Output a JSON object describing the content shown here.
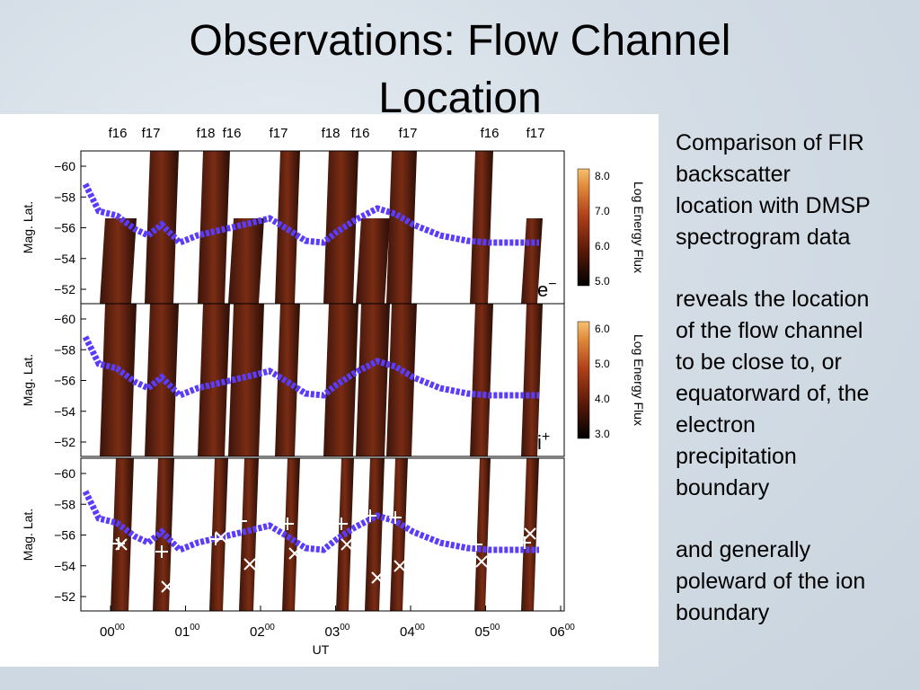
{
  "title": [
    "Observations: Flow Channel",
    "Location"
  ],
  "figure": {
    "satellites": [
      "f16",
      "f17",
      "f18",
      "f16",
      "f17",
      "f18",
      "f16",
      "f17",
      "f16",
      "f17"
    ],
    "y_label": "Mag. Lat.",
    "y_ticks": [
      "−60",
      "−58",
      "−56",
      "−54",
      "−52"
    ],
    "panels": [
      {
        "species": "e",
        "charge": "−",
        "colorbar_label": "Log Energy Flux",
        "colorbar_ticks": [
          "8.0",
          "7.0",
          "6.0",
          "5.0"
        ]
      },
      {
        "species": "i",
        "charge": "+",
        "colorbar_label": "Log Energy Flux",
        "colorbar_ticks": [
          "6.0",
          "5.0",
          "4.0",
          "3.0"
        ]
      },
      {}
    ],
    "x_ticks": [
      {
        "hour": "00",
        "minute": "00"
      },
      {
        "hour": "01",
        "minute": "00"
      },
      {
        "hour": "02",
        "minute": "00"
      },
      {
        "hour": "03",
        "minute": "00"
      },
      {
        "hour": "04",
        "minute": "00"
      },
      {
        "hour": "05",
        "minute": "00"
      },
      {
        "hour": "06",
        "minute": "00"
      }
    ],
    "x_label": "UT"
  },
  "notes": [
    [
      "Comparison of FIR",
      "backscatter",
      "location with DMSP",
      "spectrogram data"
    ],
    [
      "reveals the location",
      "of the flow channel",
      "to be close to, or",
      "equatorward of, the",
      "electron",
      "precipitation",
      "boundary"
    ],
    [
      "and generally",
      "poleward of the ion",
      "boundary"
    ]
  ]
}
